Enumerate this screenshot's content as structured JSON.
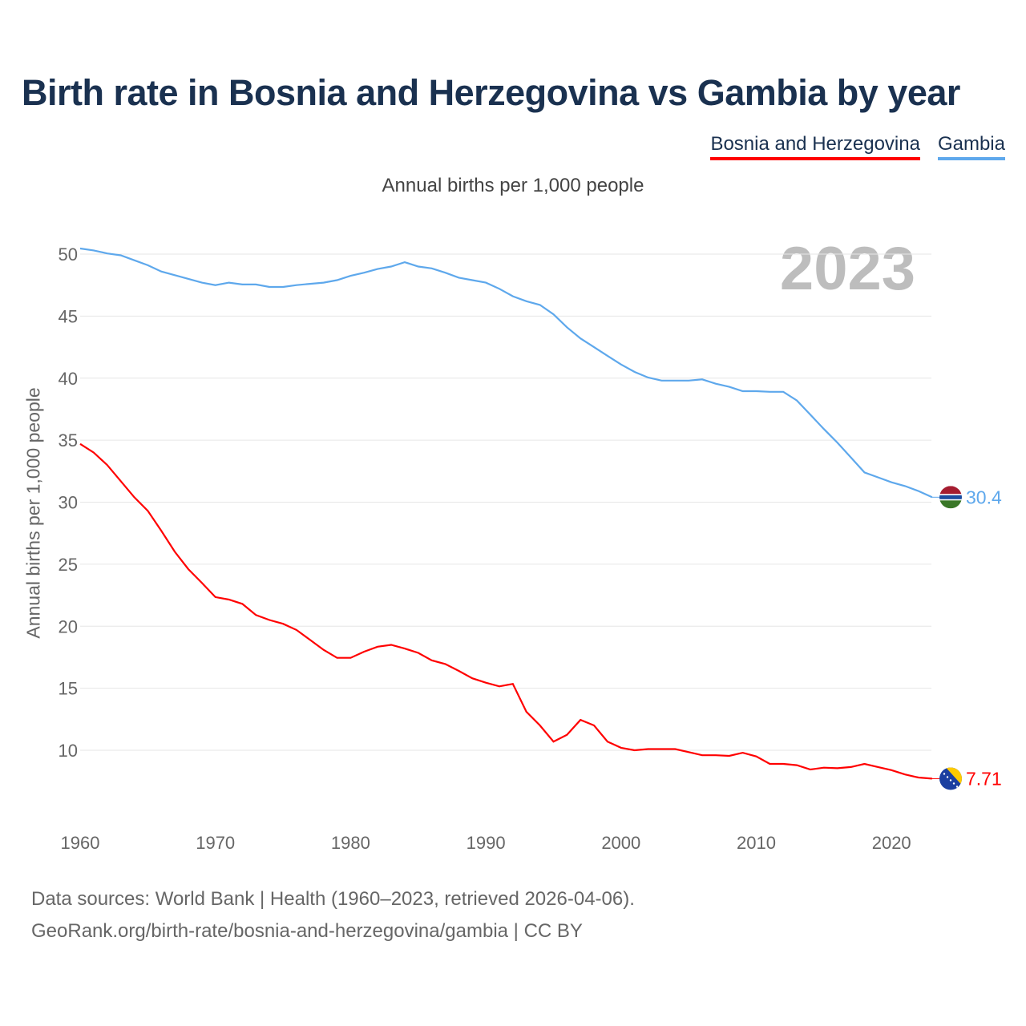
{
  "title": "Birth rate in Bosnia and Herzegovina vs Gambia by year",
  "subtitle": "Annual births per 1,000 people",
  "year_watermark": "2023",
  "footer": {
    "line1": "Data sources: World Bank | Health (1960–2023, retrieved 2026-04-06).",
    "line2": "GeoRank.org/birth-rate/bosnia-and-herzegovina/gambia | CC BY"
  },
  "chart_data": {
    "type": "line",
    "title": "Birth rate in Bosnia and Herzegovina vs Gambia by year",
    "ylabel": "Annual births per 1,000 people",
    "xlabel": "",
    "xlim": [
      1960,
      2023
    ],
    "ylim": [
      5,
      52
    ],
    "xticks": [
      1960,
      1970,
      1980,
      1990,
      2000,
      2010,
      2020
    ],
    "yticks": [
      10,
      15,
      20,
      25,
      30,
      35,
      40,
      45,
      50
    ],
    "grid": true,
    "legend": "top-right",
    "x_start": 1960,
    "series": [
      {
        "name": "Bosnia and Herzegovina",
        "color": "#ff0000",
        "end_label": "7.71",
        "flag": "bosnia-flag",
        "values": [
          34.7,
          34.0,
          33.0,
          31.7,
          30.4,
          29.3,
          27.7,
          26.0,
          24.6,
          23.5,
          22.35,
          22.15,
          21.8,
          20.9,
          20.5,
          20.2,
          19.7,
          18.9,
          18.1,
          17.45,
          17.45,
          17.95,
          18.35,
          18.5,
          18.2,
          17.85,
          17.25,
          16.95,
          16.4,
          15.8,
          15.45,
          15.15,
          15.35,
          13.1,
          12.0,
          10.7,
          11.25,
          12.45,
          12.0,
          10.7,
          10.2,
          10.0,
          10.1,
          10.1,
          10.1,
          9.85,
          9.6,
          9.6,
          9.55,
          9.8,
          9.5,
          8.9,
          8.9,
          8.8,
          8.45,
          8.6,
          8.55,
          8.65,
          8.9,
          8.65,
          8.4,
          8.05,
          7.8,
          7.71
        ]
      },
      {
        "name": "Gambia",
        "color": "#5ea8ec",
        "end_label": "30.4",
        "flag": "gambia-flag",
        "values": [
          50.45,
          50.3,
          50.05,
          49.9,
          49.5,
          49.1,
          48.6,
          48.3,
          48.0,
          47.7,
          47.5,
          47.7,
          47.55,
          47.55,
          47.35,
          47.35,
          47.5,
          47.6,
          47.7,
          47.9,
          48.25,
          48.5,
          48.8,
          49.0,
          49.35,
          49.0,
          48.85,
          48.5,
          48.1,
          47.9,
          47.7,
          47.2,
          46.6,
          46.2,
          45.9,
          45.15,
          44.1,
          43.2,
          42.5,
          41.8,
          41.1,
          40.5,
          40.05,
          39.8,
          39.8,
          39.8,
          39.9,
          39.55,
          39.3,
          38.95,
          38.95,
          38.9,
          38.9,
          38.2,
          37.05,
          35.9,
          34.8,
          33.6,
          32.4,
          32.0,
          31.6,
          31.3,
          30.9,
          30.4
        ]
      }
    ]
  }
}
